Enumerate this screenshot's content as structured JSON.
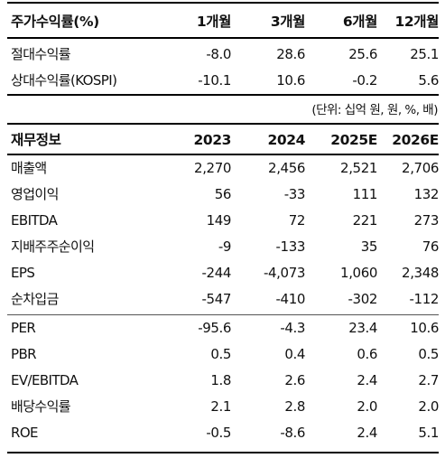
{
  "returns": {
    "title": "주가수익률(%)",
    "columns": [
      "1개월",
      "3개월",
      "6개월",
      "12개월"
    ],
    "rows": [
      {
        "label": "절대수익률",
        "values": [
          "-8.0",
          "28.6",
          "25.6",
          "25.1"
        ]
      },
      {
        "label": "상대수익률(KOSPI)",
        "values": [
          "-10.1",
          "10.6",
          "-0.2",
          "5.6"
        ]
      }
    ]
  },
  "unit_note": "(단위: 십억 원, 원, %, 배)",
  "financials": {
    "title": "재무정보",
    "columns": [
      "2023",
      "2024",
      "2025E",
      "2026E"
    ],
    "rows": [
      {
        "label": "매출액",
        "values": [
          "2,270",
          "2,456",
          "2,521",
          "2,706"
        ]
      },
      {
        "label": "영업이익",
        "values": [
          "56",
          "-33",
          "111",
          "132"
        ]
      },
      {
        "label": "EBITDA",
        "values": [
          "149",
          "72",
          "221",
          "273"
        ]
      },
      {
        "label": "지배주주순이익",
        "values": [
          "-9",
          "-133",
          "35",
          "76"
        ]
      },
      {
        "label": "EPS",
        "values": [
          "-244",
          "-4,073",
          "1,060",
          "2,348"
        ]
      },
      {
        "label": "순차입금",
        "values": [
          "-547",
          "-410",
          "-302",
          "-112"
        ]
      }
    ],
    "valuation_rows": [
      {
        "label": "PER",
        "values": [
          "-95.6",
          "-4.3",
          "23.4",
          "10.6"
        ]
      },
      {
        "label": "PBR",
        "values": [
          "0.5",
          "0.4",
          "0.6",
          "0.5"
        ]
      },
      {
        "label": "EV/EBITDA",
        "values": [
          "1.8",
          "2.6",
          "2.4",
          "2.7"
        ]
      },
      {
        "label": "배당수익률",
        "values": [
          "2.1",
          "2.8",
          "2.0",
          "2.0"
        ]
      },
      {
        "label": "ROE",
        "values": [
          "-0.5",
          "-8.6",
          "2.4",
          "5.1"
        ]
      }
    ]
  }
}
